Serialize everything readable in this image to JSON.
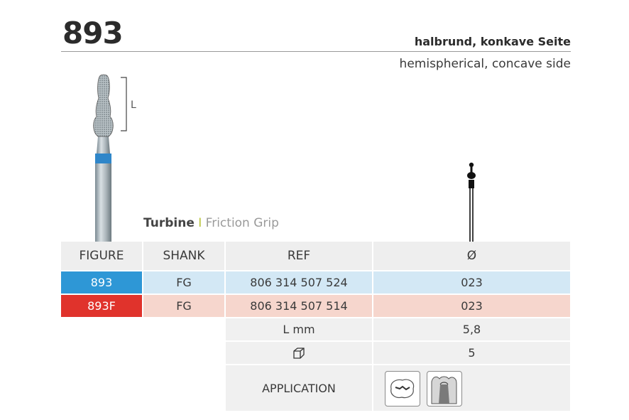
{
  "header": {
    "product_number": "893",
    "description_de": "halbrund, konkave Seite",
    "description_en": "hemispherical, concave side"
  },
  "figure_annotation": {
    "length_label": "L"
  },
  "family": {
    "turbine": "Turbine",
    "separator": "I",
    "friction_grip": "Friction Grip"
  },
  "table": {
    "headers": {
      "figure": "FIGURE",
      "shank": "SHANK",
      "ref": "REF",
      "diameter": "Ø"
    },
    "rows": [
      {
        "figure": "893",
        "shank": "FG",
        "ref": "806 314 507 524",
        "diameter": "023",
        "color": "#2e97d6"
      },
      {
        "figure": "893F",
        "shank": "FG",
        "ref": "806 314 507 514",
        "diameter": "023",
        "color": "#e0332c"
      }
    ],
    "length": {
      "label": "L mm",
      "value": "5,8"
    },
    "package": {
      "icon": "package-box-icon",
      "value": "5"
    },
    "application": {
      "label": "APPLICATION",
      "icons": [
        "occlusal-cavity-icon",
        "tooth-crown-prep-icon"
      ]
    }
  }
}
